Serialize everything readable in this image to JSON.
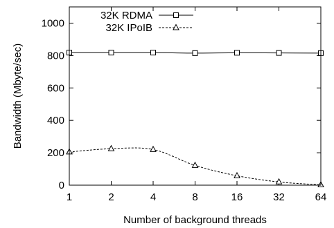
{
  "chart_data": {
    "type": "line",
    "xlabel": "Number of background threads",
    "ylabel": "Bandwidth (Mbyte/sec)",
    "x": [
      "1",
      "2",
      "4",
      "8",
      "16",
      "32",
      "64"
    ],
    "ylim": [
      0,
      1100
    ],
    "yticks": [
      0,
      200,
      400,
      600,
      800,
      1000
    ],
    "grid": false,
    "legend_position": "top-left",
    "series": [
      {
        "name": "32K RDMA",
        "marker": "square",
        "line_style": "solid",
        "values": [
          818,
          818,
          818,
          815,
          817,
          816,
          815
        ]
      },
      {
        "name": "32K IPoIB",
        "marker": "triangle",
        "line_style": "dashed",
        "values": [
          205,
          225,
          220,
          122,
          58,
          20,
          2
        ]
      }
    ]
  }
}
